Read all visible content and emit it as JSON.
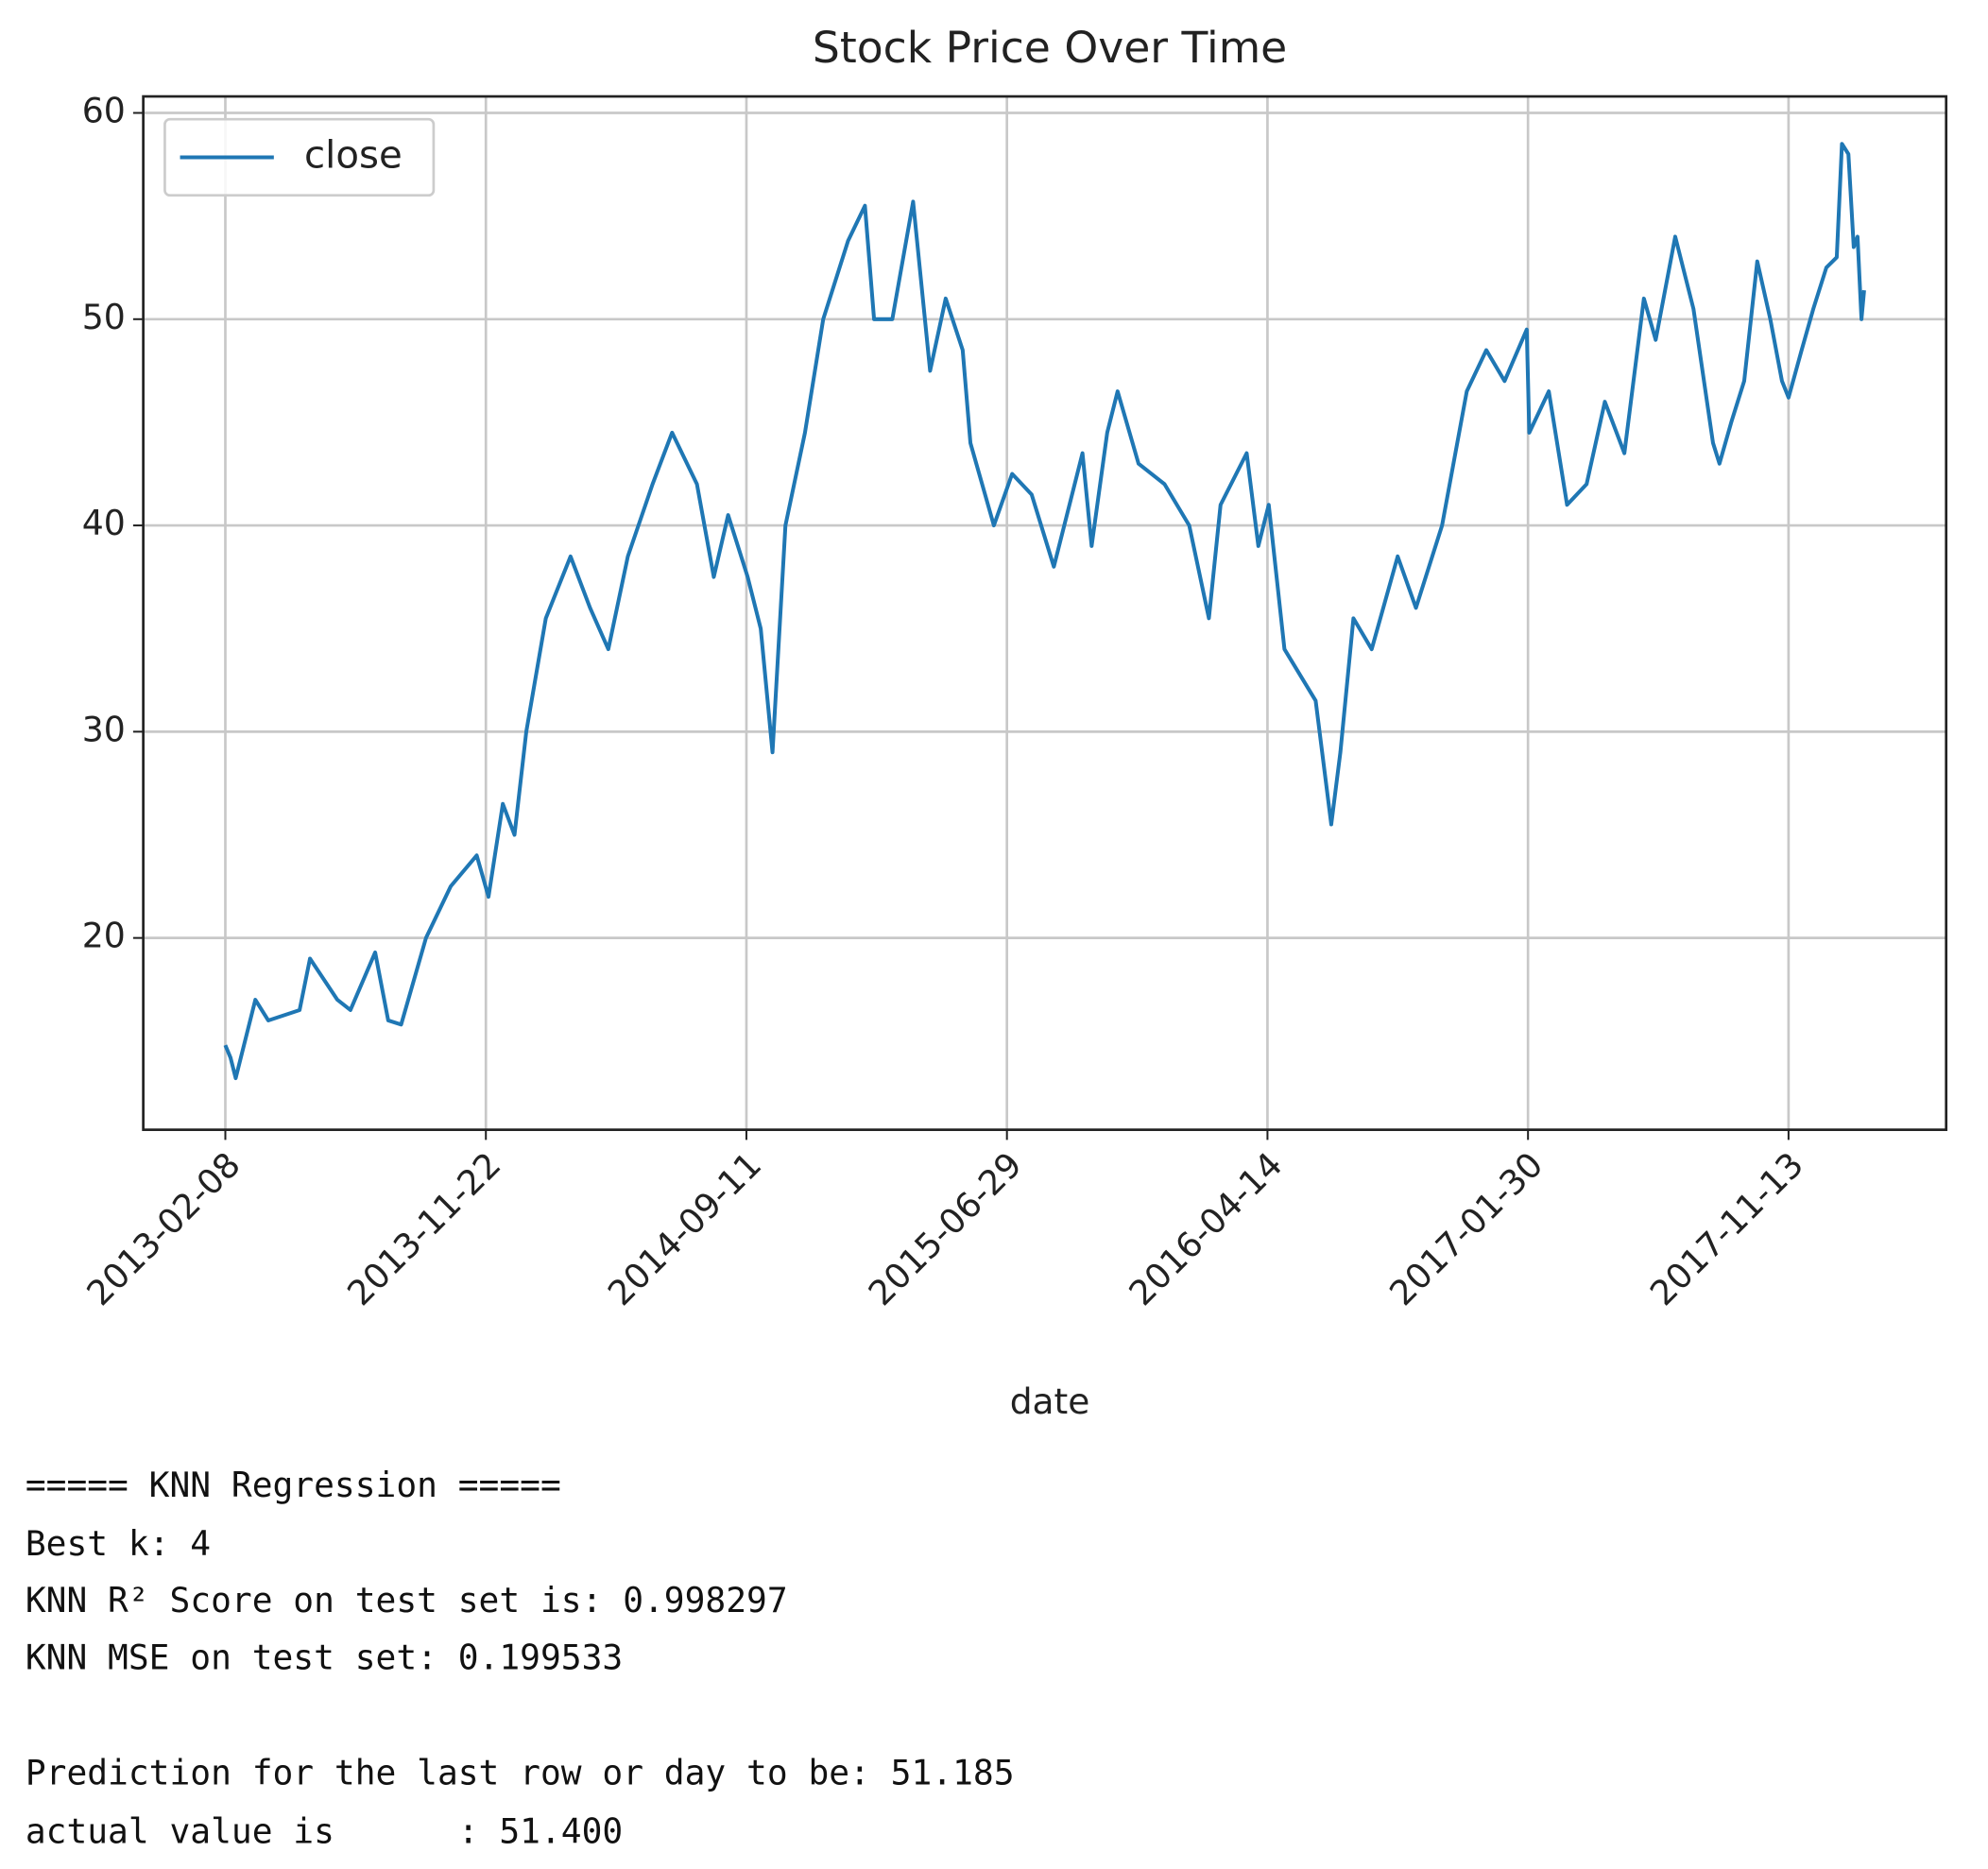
{
  "chart_data": {
    "type": "line",
    "title": "Stock Price Over Time",
    "xlabel": "date",
    "x": [
      0,
      4,
      8,
      23,
      33,
      57,
      65,
      86,
      96,
      115,
      125,
      135,
      154,
      173,
      193,
      202,
      213,
      222,
      231,
      246,
      265,
      280,
      294,
      309,
      328,
      343,
      362,
      375,
      386,
      401,
      411,
      420,
      430,
      445,
      459,
      478,
      491,
      498,
      512,
      528,
      541,
      553,
      566,
      572,
      590,
      604,
      619,
      636,
      658,
      665,
      677,
      685,
      701,
      721,
      740,
      755,
      764,
      784,
      793,
      801,
      813,
      837,
      849,
      856,
      866,
      880,
      900,
      914,
      934,
      953,
      968,
      982,
      999,
      1001,
      1016,
      1030,
      1045,
      1059,
      1074,
      1089,
      1098,
      1113,
      1127,
      1142,
      1147,
      1156,
      1166,
      1176,
      1186,
      1195,
      1200,
      1210,
      1219,
      1229,
      1237,
      1241,
      1246,
      1250,
      1253,
      1256,
      1258
    ],
    "series": [
      {
        "name": "close",
        "color": "#1f77b4",
        "values": [
          14.8,
          14.2,
          13.2,
          17.0,
          16.0,
          16.5,
          19.0,
          17.0,
          16.5,
          19.3,
          16.0,
          15.8,
          20.0,
          22.5,
          24.0,
          22.0,
          26.5,
          25.0,
          30.0,
          35.5,
          38.5,
          36.0,
          34.0,
          38.5,
          42.0,
          44.5,
          42.0,
          37.5,
          40.5,
          37.5,
          35.0,
          29.0,
          40.0,
          44.5,
          50.0,
          53.8,
          55.5,
          50.0,
          50.0,
          55.7,
          47.5,
          51.0,
          48.5,
          44.0,
          40.0,
          42.5,
          41.5,
          38.0,
          43.5,
          39.0,
          44.5,
          46.5,
          43.0,
          42.0,
          40.0,
          35.5,
          41.0,
          43.5,
          39.0,
          41.0,
          34.0,
          31.5,
          25.5,
          29.0,
          35.5,
          34.0,
          38.5,
          36.0,
          40.0,
          46.5,
          48.5,
          47.0,
          49.5,
          44.5,
          46.5,
          41.0,
          42.0,
          46.0,
          43.5,
          51.0,
          49.0,
          54.0,
          50.5,
          44.0,
          43.0,
          45.0,
          47.0,
          52.8,
          50.0,
          47.0,
          46.2,
          48.5,
          50.5,
          52.5,
          53.0,
          58.5,
          58.0,
          53.5,
          54.0,
          50.0,
          51.4
        ]
      }
    ],
    "xlim": [
      -63,
      1321
    ],
    "xticks": [
      {
        "value": 0,
        "label": "2013-02-08"
      },
      {
        "value": 200,
        "label": "2013-11-22"
      },
      {
        "value": 400,
        "label": "2014-09-11"
      },
      {
        "value": 600,
        "label": "2015-06-29"
      },
      {
        "value": 800,
        "label": "2016-04-14"
      },
      {
        "value": 1000,
        "label": "2017-01-30"
      },
      {
        "value": 1200,
        "label": "2017-11-13"
      }
    ],
    "ylim": [
      10.7,
      60.8
    ],
    "yticks": [
      20,
      30,
      40,
      50,
      60
    ],
    "grid": true,
    "legend": "upper left"
  },
  "output": [
    "===== KNN Regression =====",
    "Best k: 4",
    "KNN R² Score on test set is: 0.998297",
    "KNN MSE on test set: 0.199533",
    "Prediction for the last row or day to be: 51.185",
    "actual value is      : 51.400"
  ]
}
